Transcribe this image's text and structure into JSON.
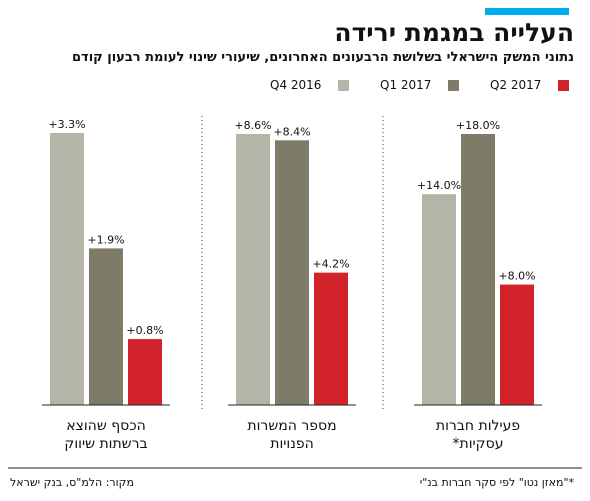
{
  "header": {
    "title": "העלייה במגמת ירידה",
    "subtitle": "נתוני המשק הישראלי בשלושת הרבעונים האחרונים, שיעורי שינוי לעומת רבעון קודם"
  },
  "colors": {
    "accent": "#00aeef",
    "q4_2016": "#b5b5a7",
    "q1_2017": "#7e7c68",
    "q2_2017": "#d2232a"
  },
  "footer": {
    "source": "מקור: הלמ\"ס, בנק ישראל",
    "note": "*\"מאזן נטו\" לפי סקר חברות בנ\"י"
  },
  "chart_data": {
    "type": "bar",
    "series": [
      {
        "name": "Q4 2016",
        "color": "#b5b5a7",
        "values": [
          3.3,
          8.6,
          14.0
        ],
        "labels": [
          "+3.3%",
          "+8.6%",
          "+14.0%"
        ]
      },
      {
        "name": "Q1 2017",
        "color": "#7e7c68",
        "values": [
          1.9,
          8.4,
          18.0
        ],
        "labels": [
          "+1.9%",
          "+8.4%",
          "+18.0%"
        ]
      },
      {
        "name": "Q2 2017",
        "color": "#d2232a",
        "values": [
          0.8,
          4.2,
          8.0
        ],
        "labels": [
          "+0.8%",
          "+4.2%",
          "+8.0%"
        ]
      }
    ],
    "categories": [
      {
        "line1": "הכסף שהוצא",
        "line2": "ברשתות שיווק"
      },
      {
        "line1": "מספר המשרות",
        "line2": "הפנויות"
      },
      {
        "line1": "פעילות חברות",
        "line2": "עסקיות*"
      }
    ],
    "legend": "top-right",
    "grid": false,
    "note": "each panel uses its own vertical scale"
  }
}
